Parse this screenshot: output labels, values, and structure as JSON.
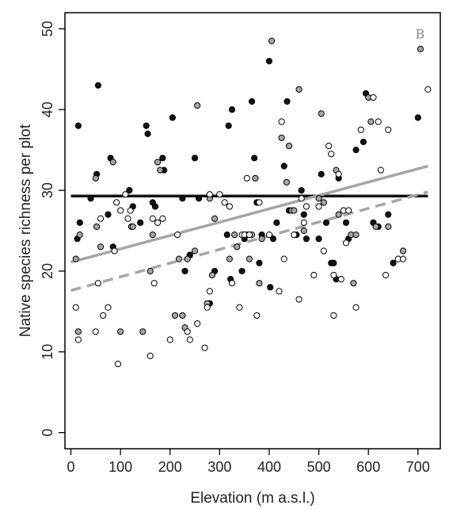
{
  "chart_data": {
    "type": "scatter",
    "title": "",
    "panel_label": "B",
    "xlabel": "Elevation (m a.s.l.)",
    "ylabel": "Native species richness per plot",
    "xlim": [
      -12,
      745
    ],
    "ylim": [
      -2,
      52
    ],
    "xticks": [
      0,
      100,
      200,
      300,
      400,
      500,
      600,
      700
    ],
    "yticks": [
      0,
      10,
      20,
      30,
      40,
      50
    ],
    "grid": false,
    "legend": "none",
    "colors": {
      "black": "#111111",
      "grey": "#a6a6a6",
      "white": "#ffffff",
      "stroke": "#000000"
    },
    "series": [
      {
        "marker": "black",
        "points": [
          [
            13,
            24
          ],
          [
            15,
            38
          ],
          [
            18,
            26
          ],
          [
            40,
            29
          ],
          [
            52,
            32
          ],
          [
            55,
            43
          ],
          [
            75,
            27
          ],
          [
            80,
            34
          ],
          [
            85,
            23
          ],
          [
            118,
            30
          ],
          [
            125,
            28
          ],
          [
            140,
            26
          ],
          [
            152,
            38
          ],
          [
            155,
            37
          ],
          [
            165,
            28.5
          ],
          [
            170,
            28
          ],
          [
            185,
            34
          ],
          [
            188,
            32.5
          ],
          [
            205,
            39
          ],
          [
            225,
            29
          ],
          [
            230,
            20
          ],
          [
            240,
            22
          ],
          [
            250,
            34
          ],
          [
            258,
            29
          ],
          [
            280,
            16
          ],
          [
            290,
            20
          ],
          [
            315,
            24.5
          ],
          [
            318,
            38
          ],
          [
            322,
            19
          ],
          [
            325,
            40
          ],
          [
            345,
            20
          ],
          [
            350,
            24
          ],
          [
            365,
            41
          ],
          [
            370,
            34
          ],
          [
            375,
            28.5
          ],
          [
            380,
            21
          ],
          [
            385,
            24.5
          ],
          [
            400,
            46
          ],
          [
            402,
            18
          ],
          [
            408,
            24
          ],
          [
            415,
            26
          ],
          [
            430,
            33
          ],
          [
            436,
            41
          ],
          [
            440,
            27.5
          ],
          [
            455,
            24.5
          ],
          [
            465,
            30
          ],
          [
            470,
            27
          ],
          [
            475,
            24
          ],
          [
            500,
            24
          ],
          [
            505,
            32
          ],
          [
            515,
            26
          ],
          [
            525,
            21
          ],
          [
            530,
            21
          ],
          [
            535,
            19
          ],
          [
            540,
            31.5
          ],
          [
            555,
            26
          ],
          [
            560,
            24
          ],
          [
            575,
            35
          ],
          [
            590,
            36
          ],
          [
            595,
            42
          ],
          [
            610,
            26
          ],
          [
            620,
            25.5
          ],
          [
            640,
            27
          ],
          [
            650,
            21
          ],
          [
            700,
            39
          ]
        ]
      },
      {
        "marker": "grey",
        "points": [
          [
            10,
            21.5
          ],
          [
            15,
            12.5
          ],
          [
            18,
            24.5
          ],
          [
            50,
            31.5
          ],
          [
            52,
            25.5
          ],
          [
            60,
            23
          ],
          [
            85,
            33.5
          ],
          [
            100,
            12.5
          ],
          [
            122,
            25.5
          ],
          [
            125,
            25.5
          ],
          [
            145,
            12.5
          ],
          [
            160,
            20
          ],
          [
            165,
            24.5
          ],
          [
            175,
            33.5
          ],
          [
            180,
            32.5
          ],
          [
            210,
            14.5
          ],
          [
            218,
            21.5
          ],
          [
            225,
            14.5
          ],
          [
            230,
            13
          ],
          [
            235,
            21.5
          ],
          [
            250,
            22.5
          ],
          [
            255,
            40.5
          ],
          [
            275,
            16
          ],
          [
            280,
            29
          ],
          [
            285,
            19.5
          ],
          [
            290,
            26.5
          ],
          [
            320,
            21.5
          ],
          [
            330,
            24.5
          ],
          [
            335,
            23
          ],
          [
            355,
            24.5
          ],
          [
            360,
            21.5
          ],
          [
            365,
            24.5
          ],
          [
            372,
            31.5
          ],
          [
            380,
            18.5
          ],
          [
            385,
            24
          ],
          [
            405,
            48.5
          ],
          [
            425,
            36.5
          ],
          [
            435,
            31
          ],
          [
            440,
            35.5
          ],
          [
            445,
            27.5
          ],
          [
            450,
            27.5
          ],
          [
            460,
            42.5
          ],
          [
            470,
            25
          ],
          [
            500,
            29
          ],
          [
            505,
            39.5
          ],
          [
            510,
            28.5
          ],
          [
            535,
            32.5
          ],
          [
            540,
            27
          ],
          [
            565,
            24.5
          ],
          [
            570,
            18.5
          ],
          [
            575,
            24.5
          ],
          [
            600,
            41.5
          ],
          [
            605,
            38.5
          ],
          [
            615,
            25.5
          ],
          [
            640,
            25.5
          ],
          [
            670,
            22.5
          ],
          [
            705,
            47.5
          ]
        ]
      },
      {
        "marker": "white",
        "points": [
          [
            10,
            15.5
          ],
          [
            15,
            11.5
          ],
          [
            50,
            12.5
          ],
          [
            55,
            18.5
          ],
          [
            60,
            26.5
          ],
          [
            65,
            14.5
          ],
          [
            75,
            15.5
          ],
          [
            88,
            22.5
          ],
          [
            92,
            28.5
          ],
          [
            95,
            8.5
          ],
          [
            100,
            27.5
          ],
          [
            110,
            29.5
          ],
          [
            115,
            26.5
          ],
          [
            120,
            27.5
          ],
          [
            160,
            9.5
          ],
          [
            165,
            26.5
          ],
          [
            168,
            18.5
          ],
          [
            175,
            26
          ],
          [
            185,
            26.5
          ],
          [
            200,
            11.5
          ],
          [
            215,
            24.5
          ],
          [
            235,
            12.5
          ],
          [
            240,
            11.5
          ],
          [
            255,
            13.5
          ],
          [
            270,
            10.5
          ],
          [
            275,
            15.5
          ],
          [
            280,
            17.5
          ],
          [
            280,
            29.5
          ],
          [
            300,
            29.5
          ],
          [
            310,
            28.5
          ],
          [
            320,
            28
          ],
          [
            325,
            18.5
          ],
          [
            340,
            15.5
          ],
          [
            345,
            24.5
          ],
          [
            350,
            24.5
          ],
          [
            355,
            31.5
          ],
          [
            360,
            24.5
          ],
          [
            375,
            14.5
          ],
          [
            380,
            28.5
          ],
          [
            400,
            24.5
          ],
          [
            420,
            17.5
          ],
          [
            425,
            38.5
          ],
          [
            430,
            21.5
          ],
          [
            450,
            24.5
          ],
          [
            460,
            16.5
          ],
          [
            465,
            29
          ],
          [
            470,
            26
          ],
          [
            475,
            28
          ],
          [
            490,
            19.5
          ],
          [
            500,
            28
          ],
          [
            510,
            22.5
          ],
          [
            520,
            35.5
          ],
          [
            525,
            34.5
          ],
          [
            530,
            19.5
          ],
          [
            530,
            14.5
          ],
          [
            540,
            32
          ],
          [
            545,
            19
          ],
          [
            550,
            27.5
          ],
          [
            555,
            23.5
          ],
          [
            560,
            27.5
          ],
          [
            575,
            15.5
          ],
          [
            585,
            37.5
          ],
          [
            610,
            41.5
          ],
          [
            620,
            38.5
          ],
          [
            625,
            32.5
          ],
          [
            635,
            19.5
          ],
          [
            640,
            37.5
          ],
          [
            660,
            21.5
          ],
          [
            670,
            21.5
          ],
          [
            720,
            42.5
          ]
        ]
      }
    ],
    "trend_lines": [
      {
        "color": "#111111",
        "style": "solid",
        "x": [
          0,
          720
        ],
        "y": [
          29.3,
          29.3
        ]
      },
      {
        "color": "#a6a6a6",
        "style": "solid",
        "x": [
          0,
          720
        ],
        "y": [
          21.1,
          33.0
        ]
      },
      {
        "color": "#a6a6a6",
        "style": "dashed",
        "x": [
          0,
          720
        ],
        "y": [
          17.6,
          29.8
        ]
      }
    ]
  }
}
